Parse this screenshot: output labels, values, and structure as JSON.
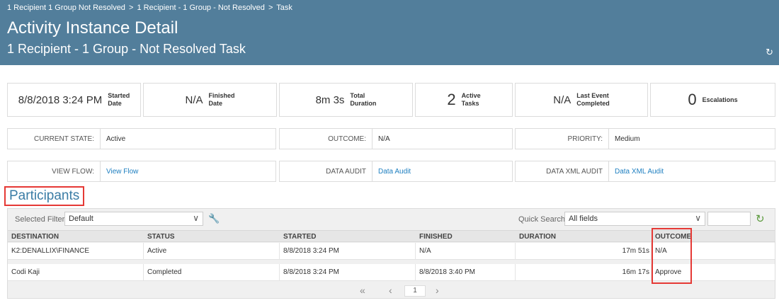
{
  "breadcrumb": {
    "items": [
      "1 Recipient 1 Group Not Resolved",
      "1 Recipient - 1 Group - Not Resolved",
      "Task"
    ],
    "separator": ">"
  },
  "header": {
    "title": "Activity Instance Detail",
    "subtitle": "1 Recipient - 1 Group - Not Resolved Task",
    "background": "#527e9b"
  },
  "stats": [
    {
      "value": "8/8/2018 3:24 PM",
      "label": "Started\nDate"
    },
    {
      "value": "N/A",
      "label": "Finished\nDate"
    },
    {
      "value": "8m 3s",
      "label": "Total\nDuration"
    },
    {
      "value": "2",
      "label": "Active\nTasks"
    },
    {
      "value": "N/A",
      "label": "Last Event\nCompleted"
    },
    {
      "value": "0",
      "label": "Escalations"
    }
  ],
  "fields": {
    "current_state": {
      "label": "CURRENT STATE:",
      "value": "Active"
    },
    "outcome": {
      "label": "OUTCOME:",
      "value": "N/A"
    },
    "priority": {
      "label": "PRIORITY:",
      "value": "Medium"
    },
    "view_flow": {
      "label": "VIEW FLOW:",
      "value": "View Flow"
    },
    "data_audit": {
      "label": "DATA AUDIT",
      "value": "Data Audit"
    },
    "data_xml_audit": {
      "label": "DATA XML AUDIT",
      "value": "Data XML Audit"
    }
  },
  "participants": {
    "title": "Participants",
    "filter_label": "Selected Filter:",
    "filter_value": "Default",
    "quick_search_label": "Quick Search:",
    "quick_search_value": "All fields",
    "columns": [
      "DESTINATION",
      "STATUS",
      "STARTED",
      "FINISHED",
      "DURATION",
      "OUTCOME"
    ],
    "rows": [
      {
        "destination": "K2:DENALLIX\\FINANCE",
        "status": "Active",
        "started": "8/8/2018 3:24 PM",
        "finished": "N/A",
        "duration": "17m 51s",
        "outcome": "N/A"
      },
      {
        "destination": "Codi Kaji",
        "status": "Completed",
        "started": "8/8/2018 3:24 PM",
        "finished": "8/8/2018 3:40 PM",
        "duration": "16m 17s",
        "outcome": "Approve"
      }
    ],
    "pager": {
      "page": "1"
    }
  },
  "colors": {
    "link": "#1e7fc0",
    "highlight": "#e53935",
    "accent": "#3a7ca5"
  }
}
